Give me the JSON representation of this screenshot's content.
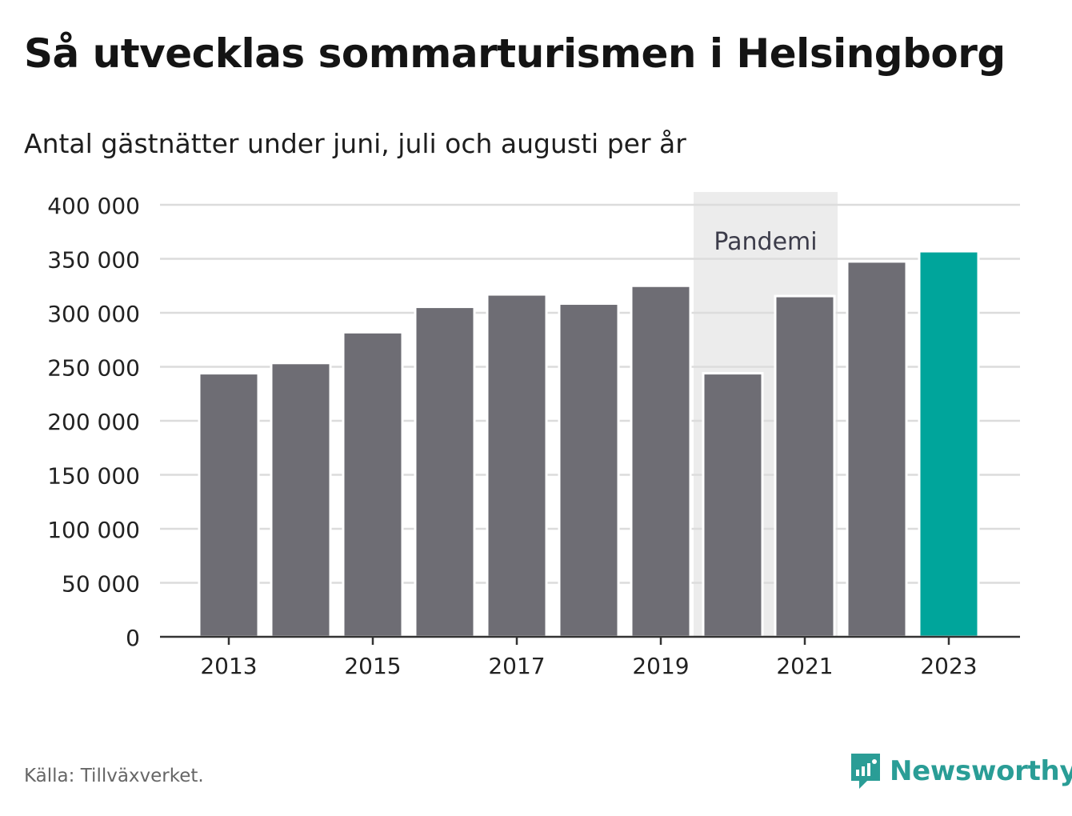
{
  "title": "Så utvecklas sommarturismen i Helsingborg",
  "subtitle": "Antal gästnätter under juni, juli och augusti per år",
  "source": "Källa: Tillväxverket.",
  "brand": "Newsworthy",
  "colors": {
    "bar": "#6e6d74",
    "highlight": "#00a59b",
    "band": "#ececec",
    "grid": "#dcdcdc",
    "brand": "#2a9d96"
  },
  "chart_data": {
    "type": "bar",
    "x": [
      2013,
      2014,
      2015,
      2016,
      2017,
      2018,
      2019,
      2020,
      2021,
      2022,
      2023
    ],
    "values": [
      244000,
      253500,
      282000,
      305500,
      317000,
      308500,
      325000,
      244000,
      315500,
      347500,
      357000
    ],
    "highlight_x": 2023,
    "x_tick_labels": [
      "2013",
      "2015",
      "2017",
      "2019",
      "2021",
      "2023"
    ],
    "y_tick_labels": [
      "0",
      "50 000",
      "100 000",
      "150 000",
      "200 000",
      "250 000",
      "300 000",
      "350 000",
      "400 000"
    ],
    "y_ticks": [
      0,
      50000,
      100000,
      150000,
      200000,
      250000,
      300000,
      350000,
      400000
    ],
    "ylim": [
      0,
      400000
    ],
    "annotation": {
      "label": "Pandemi",
      "x_from": 2020,
      "x_to": 2021
    },
    "grid": true,
    "xlabel": "",
    "ylabel": ""
  }
}
